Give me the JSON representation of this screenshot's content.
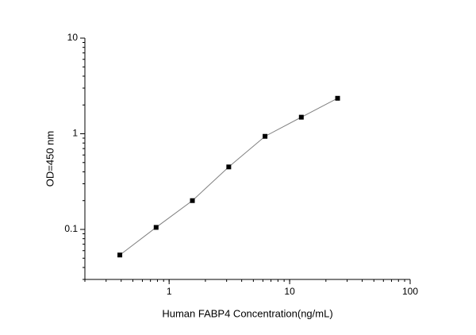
{
  "chart_data": {
    "type": "line",
    "xlabel": "Human FABP4 Concentration(ng/mL)",
    "ylabel": "OD=450 nm",
    "x_log": true,
    "y_log": true,
    "xlim": [
      0.2,
      100
    ],
    "xticks": [
      1,
      10,
      100
    ],
    "ylim": [
      0.03,
      10
    ],
    "yticks": [
      0.1,
      1,
      10
    ],
    "series": [
      {
        "color": "#000000",
        "line_color": "#808080",
        "x": [
          0.39,
          0.78,
          1.56,
          3.125,
          6.25,
          12.5,
          25
        ],
        "values": [
          0.054,
          0.105,
          0.2,
          0.45,
          0.94,
          1.49,
          2.35
        ]
      }
    ]
  }
}
